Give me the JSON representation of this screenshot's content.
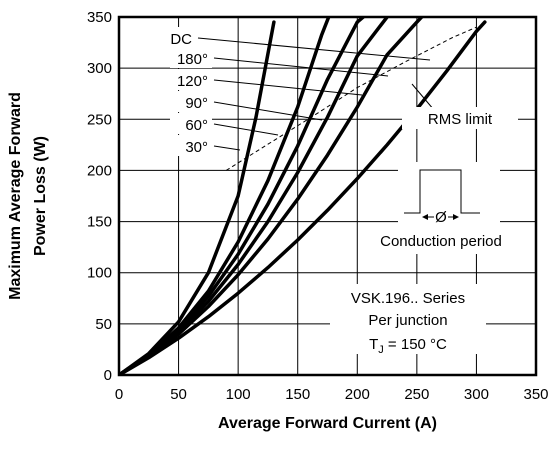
{
  "chart_data": {
    "type": "line",
    "xlabel": "Average Forward Current (A)",
    "ylabel_line1": "Maximum Average Forward",
    "ylabel_line2": "Power Loss (W)",
    "xlim": [
      0,
      350
    ],
    "ylim": [
      0,
      350
    ],
    "x_ticks": [
      0,
      50,
      100,
      150,
      200,
      250,
      300,
      350
    ],
    "y_ticks": [
      0,
      50,
      100,
      150,
      200,
      250,
      300,
      350
    ],
    "x_tick_labels": [
      "0",
      "50",
      "100",
      "150",
      "200",
      "250",
      "300",
      "350"
    ],
    "y_tick_labels": [
      "0",
      "50",
      "100",
      "150",
      "200",
      "250",
      "300",
      "350"
    ],
    "grid": true,
    "series": [
      {
        "name": "DC",
        "x": [
          0,
          25,
          50,
          75,
          100,
          125,
          150,
          175,
          200,
          225,
          250,
          275,
          300,
          307
        ],
        "y": [
          0,
          17,
          36,
          57,
          80,
          105,
          132,
          161,
          192,
          225,
          260,
          297,
          336,
          345
        ]
      },
      {
        "name": "180°",
        "x": [
          0,
          25,
          50,
          75,
          100,
          125,
          150,
          175,
          200,
          225,
          250,
          262
        ],
        "y": [
          0,
          18,
          40,
          67,
          98,
          133,
          172,
          215,
          262,
          313,
          345,
          360
        ]
      },
      {
        "name": "120°",
        "x": [
          0,
          25,
          50,
          75,
          100,
          125,
          150,
          175,
          200,
          225
        ],
        "y": [
          0,
          19,
          42,
          72,
          108,
          150,
          198,
          252,
          312,
          350
        ]
      },
      {
        "name": "90°",
        "x": [
          0,
          25,
          50,
          75,
          100,
          125,
          150,
          175,
          200,
          205
        ],
        "y": [
          0,
          19,
          44,
          77,
          118,
          167,
          224,
          289,
          345,
          350
        ]
      },
      {
        "name": "60°",
        "x": [
          0,
          25,
          50,
          75,
          100,
          125,
          150,
          170,
          176
        ],
        "y": [
          0,
          20,
          46,
          82,
          130,
          190,
          262,
          332,
          350
        ]
      },
      {
        "name": "30°",
        "x": [
          0,
          25,
          50,
          75,
          100,
          115,
          130
        ],
        "y": [
          0,
          21,
          52,
          100,
          175,
          252,
          345
        ]
      }
    ],
    "rms_limit": {
      "label": "RMS limit",
      "x": [
        90,
        120,
        160,
        200,
        240,
        280,
        300
      ],
      "y": [
        200,
        222,
        251,
        281,
        306,
        330,
        340
      ]
    },
    "annotations": {
      "conduction_label": "Conduction period",
      "phi_symbol": "Ø",
      "series_line": "VSK.196..  Series",
      "junction_line": "Per junction",
      "tj_T": "T",
      "tj_sub": "J",
      "tj_rest": " = 150 °C"
    },
    "colors": {
      "line": "#000000",
      "background": "#ffffff"
    }
  }
}
